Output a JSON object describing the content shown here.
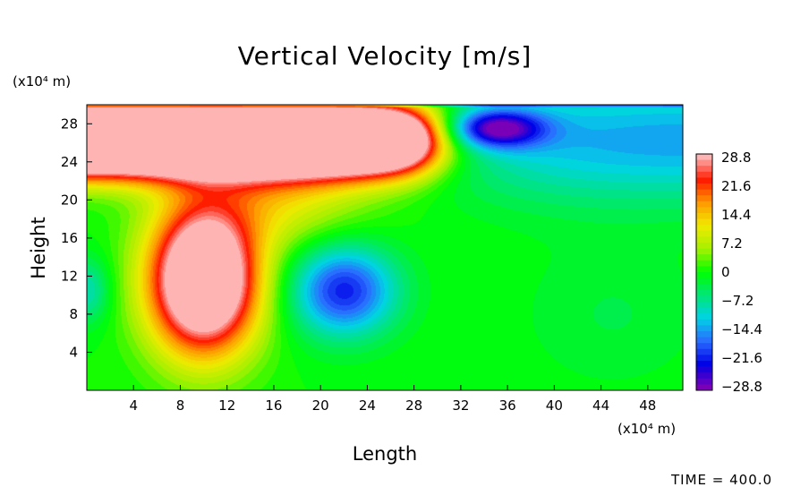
{
  "chart_data": {
    "type": "heatmap",
    "title": "Vertical Velocity [m/s]",
    "xlabel": "Length",
    "ylabel": "Height",
    "x_unit": "(x10⁴ m)",
    "y_unit": "(x10⁴ m)",
    "xlim": [
      0,
      51
    ],
    "ylim": [
      0,
      30
    ],
    "x_ticks": [
      4,
      8,
      12,
      16,
      20,
      24,
      28,
      32,
      36,
      40,
      44,
      48
    ],
    "y_ticks": [
      4,
      8,
      12,
      16,
      20,
      24,
      28
    ],
    "colorbar": {
      "ticks": [
        "28.8",
        "21.6",
        "14.4",
        "7.2",
        "0",
        "−7.2",
        "−14.4",
        "−21.6",
        "−28.8"
      ],
      "range": [
        -28.8,
        28.8
      ],
      "colors": [
        "#7a00b8",
        "#0000e6",
        "#2a6cff",
        "#00d2e6",
        "#00e676",
        "#00ff00",
        "#a6f000",
        "#f0ea00",
        "#ff9a00",
        "#ff1a00",
        "#ffb4b4"
      ]
    },
    "features": [
      {
        "kind": "max",
        "x": 10,
        "y": 11.5,
        "value": 28.8
      },
      {
        "kind": "max",
        "x": 15,
        "y": 26,
        "value": 28.8
      },
      {
        "kind": "min",
        "x": 22,
        "y": 10.5,
        "value": -18
      },
      {
        "kind": "min",
        "x": 35,
        "y": 27.5,
        "value": -22
      }
    ]
  },
  "footer": {
    "time_label": "TIME = 400.0"
  }
}
